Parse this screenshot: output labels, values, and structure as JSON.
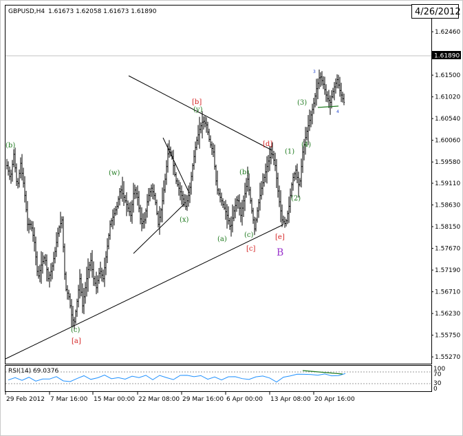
{
  "header": {
    "symbol": "GBPUSD,H4",
    "ohlc": "1.61673 1.62058 1.61673 1.61890",
    "date_box": "4/26/2012"
  },
  "rsi_panel": {
    "label": "RSI(14) 69.0376",
    "levels": [
      "100",
      "70",
      "30",
      "0"
    ],
    "color": "#1e90ff"
  },
  "colors": {
    "candle": "#000000",
    "wave_green": "#1f7a1f",
    "wave_red": "#d42020",
    "wave_purple": "#9933cc",
    "wave_blue": "#1a3fcc"
  },
  "chart_data": {
    "type": "line",
    "title": "GBPUSD,H4",
    "ylim": [
      1.5512,
      1.6304
    ],
    "y_ticks": [
      "1.62460",
      "1.61500",
      "1.61020",
      "1.60540",
      "1.60060",
      "1.59580",
      "1.59110",
      "1.58630",
      "1.58150",
      "1.57670",
      "1.57190",
      "1.56710",
      "1.56230",
      "1.55750",
      "1.55270"
    ],
    "current_price": "1.61890",
    "x_ticks": [
      "29 Feb 2012",
      "7 Mar 16:00",
      "15 Mar 00:00",
      "22 Mar 08:00",
      "29 Mar 16:00",
      "6 Apr 00:00",
      "13 Apr 08:00",
      "20 Apr 16:00"
    ],
    "price_path": [
      [
        0,
        1.595
      ],
      [
        5,
        1.592
      ],
      [
        10,
        1.5975
      ],
      [
        15,
        1.59
      ],
      [
        20,
        1.5955
      ],
      [
        25,
        1.59
      ],
      [
        30,
        1.582
      ],
      [
        35,
        1.582
      ],
      [
        40,
        1.578
      ],
      [
        45,
        1.57
      ],
      [
        50,
        1.573
      ],
      [
        55,
        1.575
      ],
      [
        60,
        1.57
      ],
      [
        65,
        1.572
      ],
      [
        70,
        1.576
      ],
      [
        75,
        1.581
      ],
      [
        80,
        1.583
      ],
      [
        85,
        1.568
      ],
      [
        90,
        1.566
      ],
      [
        95,
        1.561
      ],
      [
        98,
        1.5605
      ],
      [
        102,
        1.565
      ],
      [
        106,
        1.57
      ],
      [
        110,
        1.564
      ],
      [
        114,
        1.568
      ],
      [
        118,
        1.572
      ],
      [
        122,
        1.574
      ],
      [
        126,
        1.57
      ],
      [
        130,
        1.568
      ],
      [
        135,
        1.572
      ],
      [
        140,
        1.57
      ],
      [
        145,
        1.576
      ],
      [
        150,
        1.582
      ],
      [
        155,
        1.584
      ],
      [
        160,
        1.586
      ],
      [
        165,
        1.59
      ],
      [
        170,
        1.588
      ],
      [
        175,
        1.586
      ],
      [
        180,
        1.584
      ],
      [
        185,
        1.59
      ],
      [
        190,
        1.588
      ],
      [
        195,
        1.582
      ],
      [
        200,
        1.583
      ],
      [
        205,
        1.588
      ],
      [
        210,
        1.59
      ],
      [
        215,
        1.588
      ],
      [
        220,
        1.582
      ],
      [
        225,
        1.586
      ],
      [
        230,
        1.592
      ],
      [
        235,
        1.599
      ],
      [
        240,
        1.597
      ],
      [
        245,
        1.592
      ],
      [
        250,
        1.59
      ],
      [
        255,
        1.588
      ],
      [
        260,
        1.586
      ],
      [
        265,
        1.589
      ],
      [
        270,
        1.595
      ],
      [
        275,
        1.6
      ],
      [
        280,
        1.603
      ],
      [
        285,
        1.605
      ],
      [
        290,
        1.604
      ],
      [
        295,
        1.6
      ],
      [
        300,
        1.598
      ],
      [
        305,
        1.59
      ],
      [
        310,
        1.588
      ],
      [
        315,
        1.586
      ],
      [
        320,
        1.584
      ],
      [
        325,
        1.581
      ],
      [
        330,
        1.585
      ],
      [
        335,
        1.588
      ],
      [
        340,
        1.584
      ],
      [
        345,
        1.588
      ],
      [
        350,
        1.592
      ],
      [
        355,
        1.586
      ],
      [
        360,
        1.581
      ],
      [
        365,
        1.586
      ],
      [
        370,
        1.59
      ],
      [
        375,
        1.593
      ],
      [
        380,
        1.596
      ],
      [
        385,
        1.598
      ],
      [
        390,
        1.595
      ],
      [
        395,
        1.588
      ],
      [
        400,
        1.583
      ],
      [
        405,
        1.582
      ],
      [
        410,
        1.586
      ],
      [
        415,
        1.592
      ],
      [
        420,
        1.594
      ],
      [
        425,
        1.59
      ],
      [
        430,
        1.598
      ],
      [
        435,
        1.602
      ],
      [
        440,
        1.605
      ],
      [
        445,
        1.608
      ],
      [
        450,
        1.612
      ],
      [
        455,
        1.615
      ],
      [
        460,
        1.613
      ],
      [
        465,
        1.61
      ],
      [
        470,
        1.609
      ],
      [
        475,
        1.612
      ],
      [
        480,
        1.614
      ],
      [
        485,
        1.611
      ],
      [
        490,
        1.609
      ],
      [
        495,
        1.615
      ],
      [
        500,
        1.6189
      ]
    ],
    "rsi_path": [
      [
        10,
        47
      ],
      [
        20,
        55
      ],
      [
        30,
        44
      ],
      [
        40,
        52
      ],
      [
        50,
        40
      ],
      [
        60,
        50
      ],
      [
        70,
        48
      ],
      [
        80,
        56
      ],
      [
        90,
        42
      ],
      [
        100,
        35
      ],
      [
        110,
        50
      ],
      [
        120,
        58
      ],
      [
        130,
        44
      ],
      [
        140,
        55
      ],
      [
        150,
        62
      ],
      [
        160,
        48
      ],
      [
        170,
        56
      ],
      [
        180,
        45
      ],
      [
        190,
        58
      ],
      [
        200,
        52
      ],
      [
        210,
        60
      ],
      [
        220,
        46
      ],
      [
        230,
        62
      ],
      [
        240,
        55
      ],
      [
        250,
        48
      ],
      [
        260,
        60
      ],
      [
        270,
        64
      ],
      [
        280,
        58
      ],
      [
        290,
        63
      ],
      [
        300,
        48
      ],
      [
        310,
        56
      ],
      [
        320,
        42
      ],
      [
        330,
        54
      ],
      [
        340,
        60
      ],
      [
        350,
        50
      ],
      [
        360,
        46
      ],
      [
        370,
        58
      ],
      [
        380,
        62
      ],
      [
        390,
        52
      ],
      [
        400,
        35
      ],
      [
        410,
        55
      ],
      [
        420,
        62
      ],
      [
        430,
        66
      ],
      [
        440,
        64
      ],
      [
        450,
        68
      ],
      [
        460,
        62
      ],
      [
        470,
        66
      ],
      [
        480,
        60
      ],
      [
        490,
        64
      ],
      [
        500,
        69
      ]
    ],
    "wave_labels_green": [
      "b",
      "w",
      "x",
      "y",
      "a",
      "b",
      "c",
      "c",
      "1",
      "2",
      "3",
      "4"
    ],
    "wave_labels_red": [
      "b",
      "d",
      "c",
      "e",
      "a"
    ],
    "wave_label_purple": "B",
    "wave_labels_blue": [
      "3",
      "4"
    ]
  }
}
